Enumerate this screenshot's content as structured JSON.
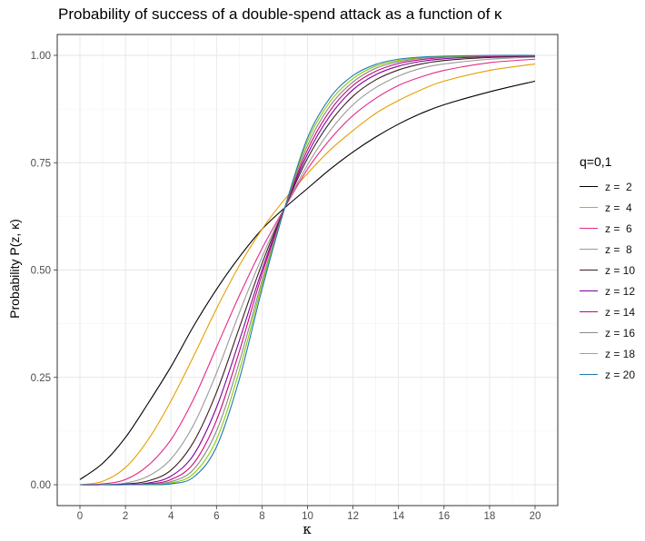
{
  "title": "Probability of success of a double-spend attack as a function of  κ",
  "chart_data": {
    "type": "line",
    "title": "Probability of success of a double-spend attack as a function of  κ",
    "xlabel": "κ",
    "ylabel": "Probability  P(z, κ)",
    "xlim": [
      0,
      20
    ],
    "ylim": [
      0,
      1
    ],
    "xticks": [
      "0",
      "2",
      "4",
      "6",
      "8",
      "10",
      "12",
      "14",
      "16",
      "18",
      "20"
    ],
    "yticks": [
      "0.00",
      "0.25",
      "0.50",
      "0.75",
      "1.00"
    ],
    "grid": true,
    "legend_title": "q=0,1",
    "legend_position": "right",
    "x": [
      0,
      1,
      2,
      3,
      4,
      5,
      6,
      7,
      8,
      9,
      10,
      11,
      12,
      13,
      14,
      15,
      16,
      18,
      20
    ],
    "series": [
      {
        "name": "z =  2",
        "color": "#000000",
        "values": [
          0.012,
          0.05,
          0.11,
          0.19,
          0.275,
          0.37,
          0.455,
          0.53,
          0.595,
          0.645,
          0.69,
          0.735,
          0.775,
          0.81,
          0.84,
          0.865,
          0.885,
          0.915,
          0.94
        ]
      },
      {
        "name": "z =  4",
        "color": "#E69F00",
        "values": [
          0.0,
          0.008,
          0.04,
          0.105,
          0.195,
          0.3,
          0.41,
          0.51,
          0.595,
          0.665,
          0.725,
          0.78,
          0.825,
          0.865,
          0.895,
          0.92,
          0.94,
          0.965,
          0.98
        ]
      },
      {
        "name": "z =  6",
        "color": "#E7298A",
        "values": [
          0.0,
          0.002,
          0.012,
          0.045,
          0.105,
          0.2,
          0.32,
          0.44,
          0.55,
          0.645,
          0.735,
          0.805,
          0.86,
          0.9,
          0.93,
          0.95,
          0.965,
          0.983,
          0.991
        ]
      },
      {
        "name": "z =  8",
        "color": "#999999",
        "values": [
          0.0,
          0.0,
          0.004,
          0.02,
          0.06,
          0.14,
          0.26,
          0.4,
          0.53,
          0.645,
          0.745,
          0.825,
          0.885,
          0.925,
          0.952,
          0.97,
          0.98,
          0.991,
          0.996
        ]
      },
      {
        "name": "z = 10",
        "color": "#3B1F1F",
        "values": [
          0.0,
          0.0,
          0.0015,
          0.009,
          0.034,
          0.1,
          0.215,
          0.365,
          0.515,
          0.645,
          0.76,
          0.845,
          0.905,
          0.943,
          0.966,
          0.98,
          0.988,
          0.995,
          0.998
        ]
      },
      {
        "name": "z = 12",
        "color": "#7B00A0",
        "values": [
          0.0,
          0.0,
          0.0005,
          0.004,
          0.02,
          0.07,
          0.18,
          0.335,
          0.5,
          0.645,
          0.77,
          0.86,
          0.92,
          0.955,
          0.975,
          0.986,
          0.992,
          0.997,
          0.999
        ]
      },
      {
        "name": "z = 14",
        "color": "#CC0077",
        "values": [
          0.0,
          0.0,
          0.0,
          0.002,
          0.012,
          0.05,
          0.15,
          0.31,
          0.49,
          0.645,
          0.78,
          0.872,
          0.93,
          0.963,
          0.981,
          0.99,
          0.995,
          0.998,
          0.999
        ]
      },
      {
        "name": "z = 16",
        "color": "#888888",
        "values": [
          0.0,
          0.0,
          0.0,
          0.001,
          0.007,
          0.036,
          0.125,
          0.285,
          0.475,
          0.645,
          0.79,
          0.883,
          0.938,
          0.97,
          0.985,
          0.993,
          0.996,
          0.999,
          1.0
        ]
      },
      {
        "name": "z = 18",
        "color": "#88CC00",
        "values": [
          0.0,
          0.0,
          0.0,
          0.0005,
          0.004,
          0.026,
          0.105,
          0.265,
          0.465,
          0.645,
          0.8,
          0.893,
          0.946,
          0.975,
          0.988,
          0.995,
          0.997,
          0.999,
          1.0
        ]
      },
      {
        "name": "z = 20",
        "color": "#1F78B4",
        "values": [
          0.0,
          0.0,
          0.0,
          0.0002,
          0.002,
          0.018,
          0.088,
          0.245,
          0.455,
          0.645,
          0.808,
          0.902,
          0.953,
          0.979,
          0.991,
          0.996,
          0.998,
          1.0,
          1.0
        ]
      }
    ]
  }
}
